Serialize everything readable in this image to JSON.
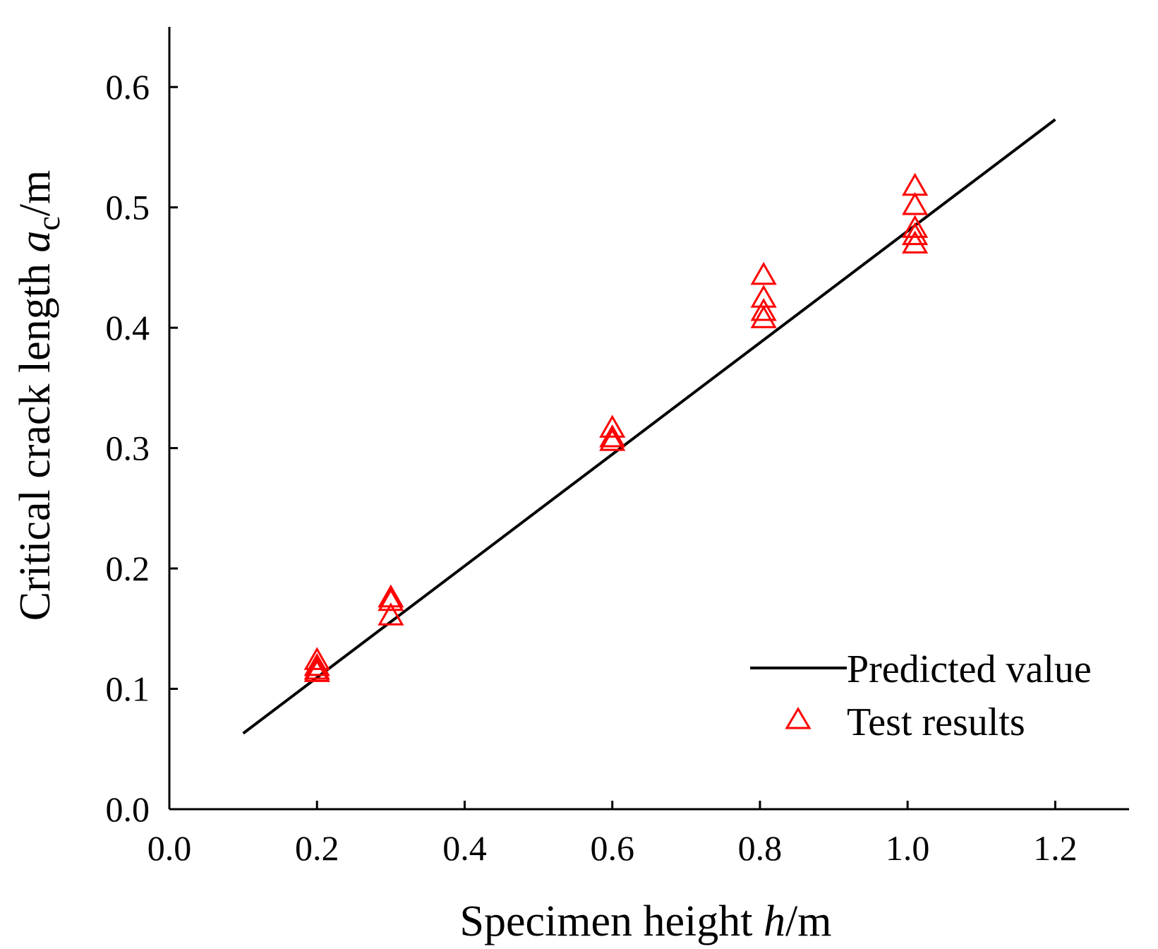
{
  "chart_data": {
    "type": "scatter",
    "title": "",
    "xlabel": {
      "prefix": "Specimen height ",
      "var": "h",
      "suffix": "/m"
    },
    "ylabel": {
      "prefix": "Critical crack length ",
      "var": "a",
      "sub": "c",
      "suffix": "/m"
    },
    "xlim": [
      0.0,
      1.3
    ],
    "ylim": [
      0.0,
      0.65
    ],
    "xticks": [
      "0.0",
      "0.2",
      "0.4",
      "0.6",
      "0.8",
      "1.0",
      "1.2"
    ],
    "yticks": [
      "0.0",
      "0.1",
      "0.2",
      "0.3",
      "0.4",
      "0.5",
      "0.6"
    ],
    "grid": false,
    "legend_position": "bottom-right",
    "series": [
      {
        "name": "Predicted value",
        "kind": "line",
        "color": "#000000",
        "x": [
          0.1,
          1.2
        ],
        "y": [
          0.063,
          0.573
        ]
      },
      {
        "name": "Test results",
        "kind": "scatter",
        "marker": "open-triangle",
        "color": "#ff0000",
        "x": [
          0.2,
          0.2,
          0.2,
          0.2,
          0.3,
          0.3,
          0.3,
          0.6,
          0.6,
          0.6,
          0.805,
          0.805,
          0.805,
          0.805,
          1.01,
          1.01,
          1.01,
          1.01,
          1.01
        ],
        "y": [
          0.123,
          0.118,
          0.115,
          0.113,
          0.175,
          0.172,
          0.16,
          0.316,
          0.308,
          0.305,
          0.443,
          0.424,
          0.413,
          0.407,
          0.517,
          0.501,
          0.482,
          0.476,
          0.469
        ]
      }
    ]
  }
}
